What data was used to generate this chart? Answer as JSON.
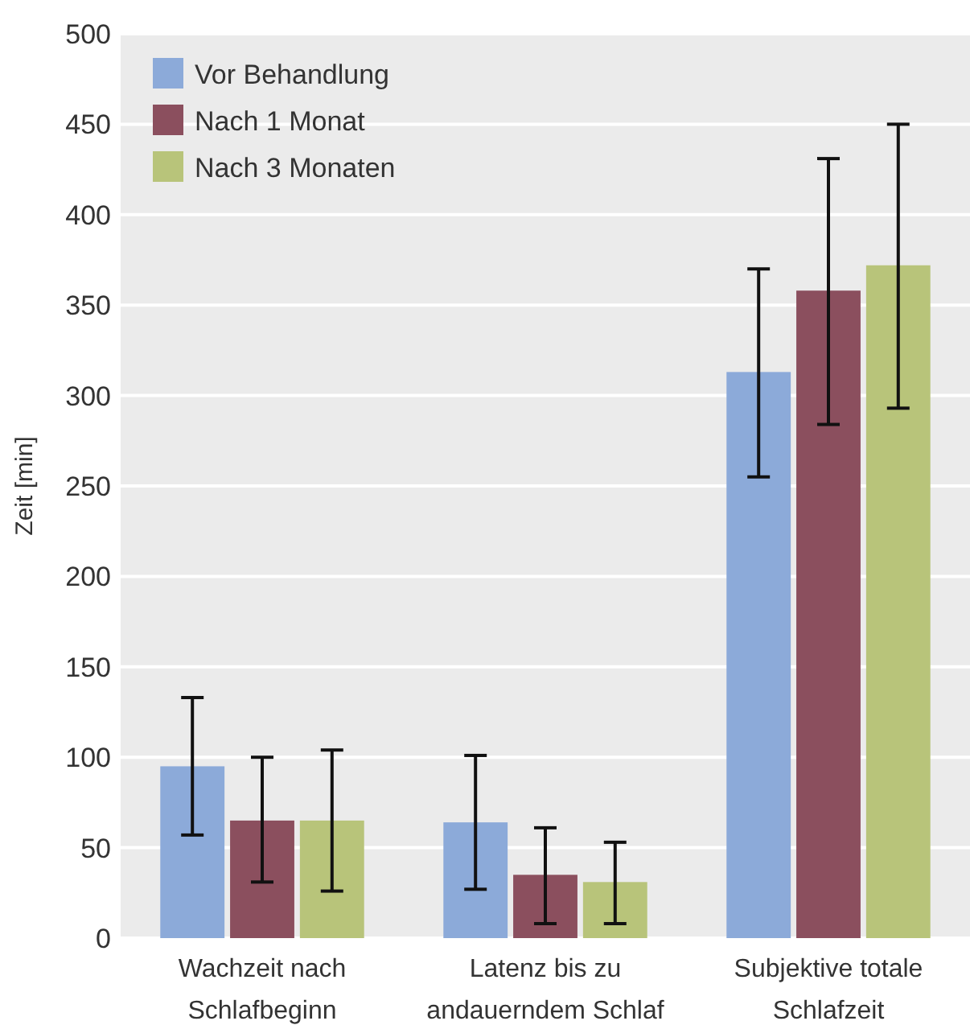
{
  "chart_data": {
    "type": "bar",
    "ylabel": "Zeit [min]",
    "categories": [
      "Wachzeit nach Schlafbeginn",
      "Latenz bis zu andauerndem Schlaf",
      "Subjektive totale Schlafzeit"
    ],
    "series": [
      {
        "name": "Vor Behandlung",
        "color": "#8caad9",
        "values": [
          95,
          64,
          313
        ],
        "errors": [
          [
            57,
            133
          ],
          [
            27,
            101
          ],
          [
            255,
            370
          ]
        ]
      },
      {
        "name": "Nach 1 Monat",
        "color": "#8b4f5e",
        "values": [
          65,
          35,
          358
        ],
        "errors": [
          [
            31,
            100
          ],
          [
            8,
            61
          ],
          [
            284,
            431
          ]
        ]
      },
      {
        "name": "Nach 3 Monaten",
        "color": "#b8c47a",
        "values": [
          65,
          31,
          372
        ],
        "errors": [
          [
            26,
            104
          ],
          [
            8,
            53
          ],
          [
            293,
            450
          ]
        ]
      }
    ],
    "ylim": [
      0,
      500
    ],
    "yticks": [
      0,
      50,
      100,
      150,
      200,
      250,
      300,
      350,
      400,
      450,
      500
    ],
    "grid": "y",
    "legend": "top left"
  }
}
